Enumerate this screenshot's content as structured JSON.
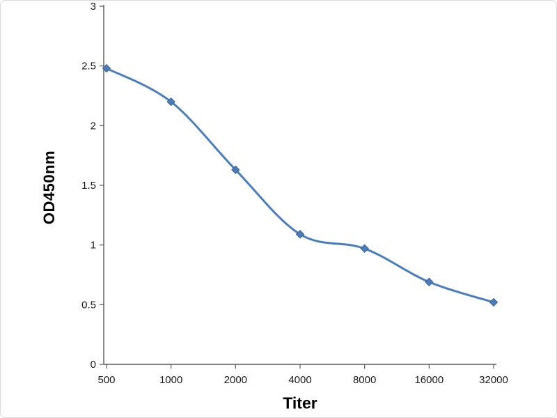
{
  "chart_data": {
    "type": "line",
    "title": "",
    "xlabel": "Titer",
    "ylabel": "OD450nm",
    "categories": [
      "500",
      "1000",
      "2000",
      "4000",
      "8000",
      "16000",
      "32000"
    ],
    "series": [
      {
        "name": "OD450nm",
        "values": [
          2.48,
          2.2,
          1.63,
          1.09,
          0.97,
          0.69,
          0.52
        ]
      }
    ],
    "ylim": [
      0,
      3
    ],
    "yticks": [
      "0",
      "0.5",
      "1",
      "1.5",
      "2",
      "2.5",
      "3"
    ],
    "grid": false,
    "legend": false,
    "marker": "diamond",
    "line_color": "#4a7ebb",
    "marker_color": "#4a7ebb",
    "marker_edge_color": "#3a618f",
    "axis_color": "#595959",
    "tick_text_color": "#1a1a1a"
  }
}
